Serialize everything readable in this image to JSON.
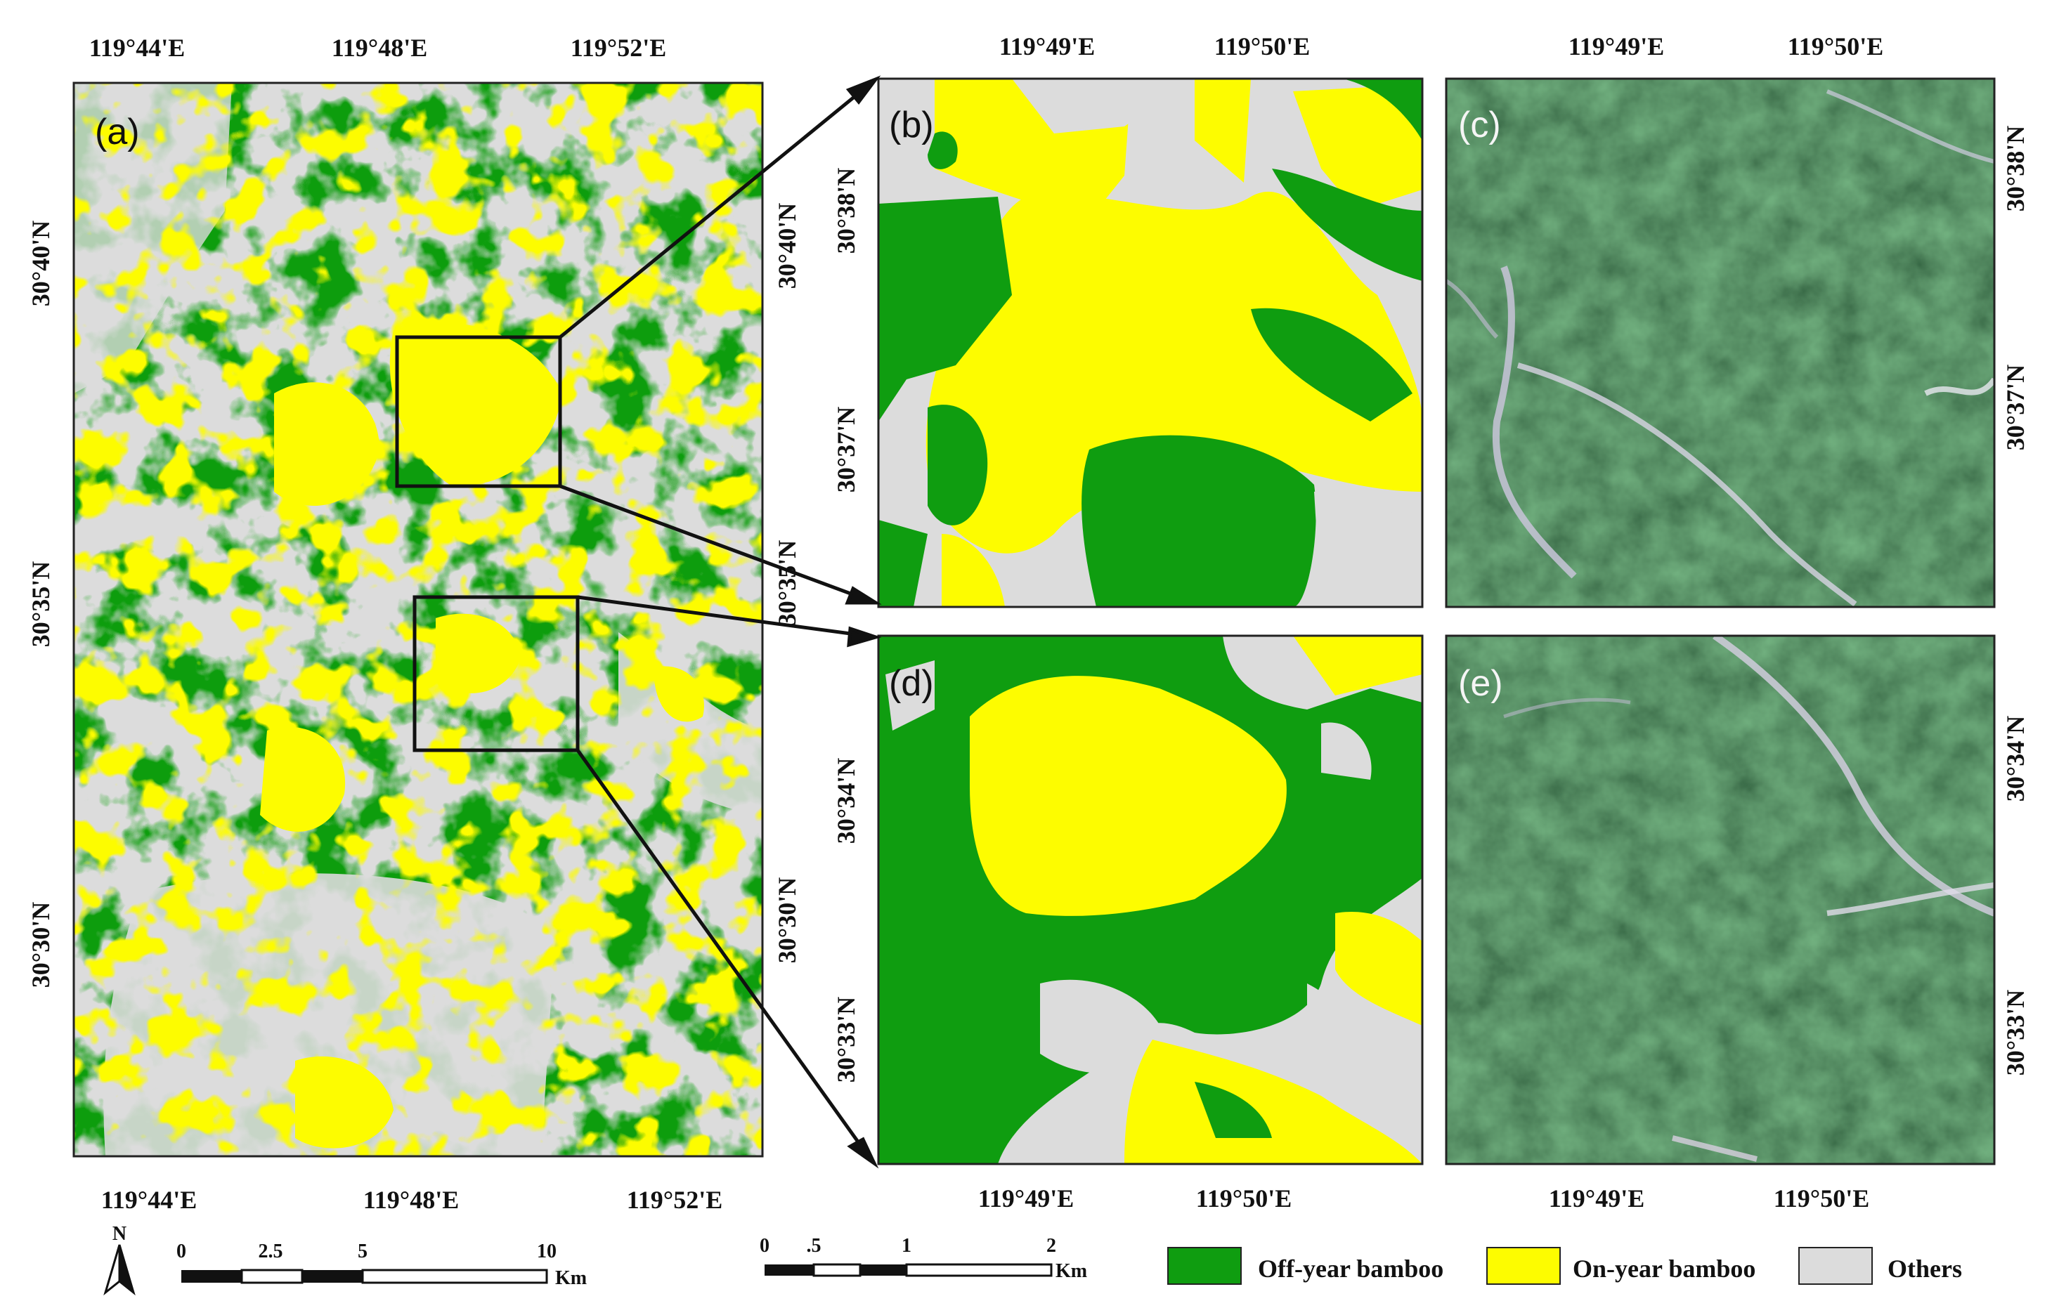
{
  "panels": {
    "a": {
      "label": "(a)"
    },
    "b": {
      "label": "(b)"
    },
    "c": {
      "label": "(c)"
    },
    "d": {
      "label": "(d)"
    },
    "e": {
      "label": "(e)"
    }
  },
  "ticks": {
    "a_top": [
      "119°44'E",
      "119°48'E",
      "119°52'E"
    ],
    "a_bottom": [
      "119°44'E",
      "119°48'E",
      "119°52'E"
    ],
    "a_left": [
      "30°40'N",
      "30°35'N",
      "30°30'N"
    ],
    "a_right": [
      "30°40'N",
      "30°35'N",
      "30°30'N"
    ],
    "b_top": [
      "119°49'E",
      "119°50'E"
    ],
    "b_left": [
      "30°38'N",
      "30°37'N"
    ],
    "c_top": [
      "119°49'E",
      "119°50'E"
    ],
    "c_right": [
      "30°38'N",
      "30°37'N"
    ],
    "d_bottom": [
      "119°49'E",
      "119°50'E"
    ],
    "d_left": [
      "30°34'N",
      "30°33'N"
    ],
    "e_bottom": [
      "119°49'E",
      "119°50'E"
    ],
    "e_right": [
      "30°34'N",
      "30°33'N"
    ]
  },
  "north": {
    "label": "N"
  },
  "scalebar_a": {
    "labels": [
      "0",
      "2.5",
      "5",
      "10"
    ],
    "unit": "Km"
  },
  "scalebar_b": {
    "labels": [
      "0",
      ".5",
      "1",
      "2"
    ],
    "unit": "Km"
  },
  "legend": [
    {
      "label": "Off-year bamboo",
      "color": "#0f9d10"
    },
    {
      "label": "On-year bamboo",
      "color": "#fdfc00"
    },
    {
      "label": "Others",
      "color": "#dcdcdc"
    }
  ],
  "colors": {
    "off_year": "#0f9d10",
    "on_year": "#fdfc00",
    "others": "#dcdcdc",
    "satellite_dark": "#1e3a24"
  }
}
